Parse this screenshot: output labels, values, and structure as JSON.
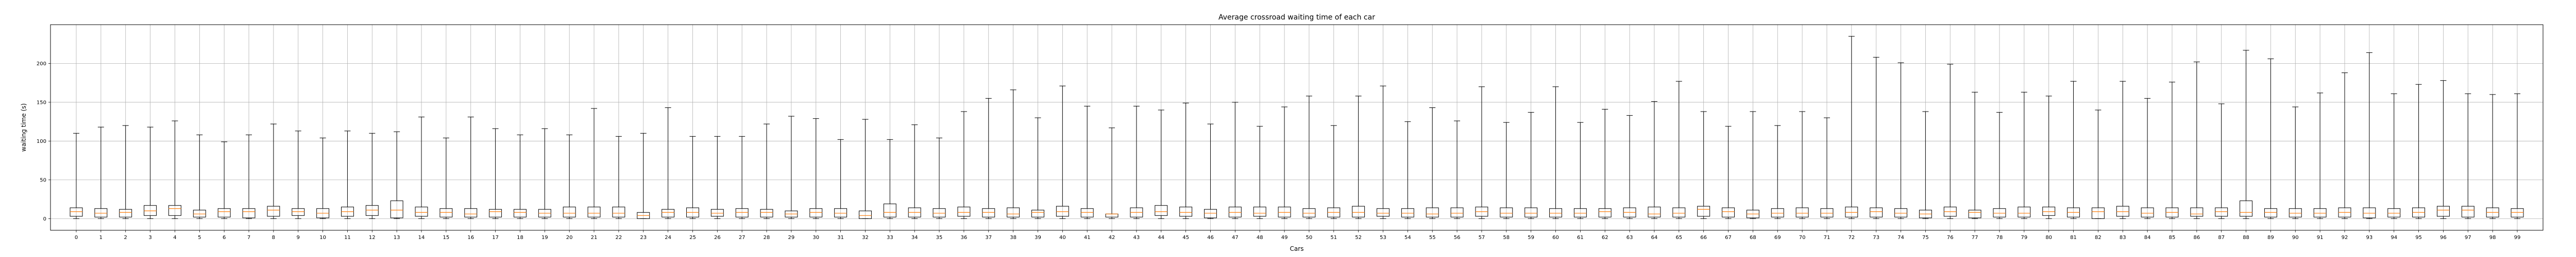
{
  "chart_data": {
    "type": "box",
    "title": "Average crossroad waiting time of each car",
    "xlabel": "Cars",
    "ylabel": "waiting time (s)",
    "ylim": [
      -15,
      250
    ],
    "yticks": [
      0,
      50,
      100,
      150,
      200
    ],
    "grid": true,
    "box_color": "#000000",
    "median_color": "#ff7f0e",
    "categories": [
      "0",
      "1",
      "2",
      "3",
      "4",
      "5",
      "6",
      "7",
      "8",
      "9",
      "10",
      "11",
      "12",
      "13",
      "14",
      "15",
      "16",
      "17",
      "18",
      "19",
      "20",
      "21",
      "22",
      "23",
      "24",
      "25",
      "26",
      "27",
      "28",
      "29",
      "30",
      "31",
      "32",
      "33",
      "34",
      "35",
      "36",
      "37",
      "38",
      "39",
      "40",
      "41",
      "42",
      "43",
      "44",
      "45",
      "46",
      "47",
      "48",
      "49",
      "50",
      "51",
      "52",
      "53",
      "54",
      "55",
      "56",
      "57",
      "58",
      "59",
      "60",
      "61",
      "62",
      "63",
      "64",
      "65",
      "66",
      "67",
      "68",
      "69",
      "70",
      "71",
      "72",
      "73",
      "74",
      "75",
      "76",
      "77",
      "78",
      "79",
      "80",
      "81",
      "82",
      "83",
      "84",
      "85",
      "86",
      "87",
      "88",
      "89",
      "90",
      "91",
      "92",
      "93",
      "94",
      "95",
      "96",
      "97",
      "98",
      "99"
    ],
    "whisker_max": [
      110,
      118,
      120,
      118,
      126,
      108,
      99,
      108,
      122,
      113,
      104,
      113,
      110,
      112,
      131,
      104,
      131,
      116,
      108,
      116,
      108,
      142,
      106,
      110,
      143,
      106,
      106,
      106,
      122,
      132,
      129,
      102,
      128,
      102,
      121,
      104,
      138,
      155,
      166,
      130,
      171,
      145,
      117,
      145,
      140,
      149,
      122,
      150,
      119,
      144,
      158,
      120,
      158,
      171,
      125,
      143,
      126,
      170,
      124,
      137,
      170,
      124,
      141,
      133,
      151,
      177,
      138,
      119,
      138,
      120,
      138,
      130,
      235,
      208,
      201,
      138,
      199,
      163,
      137,
      163,
      158,
      177,
      140,
      177,
      155,
      176,
      202,
      148,
      217,
      206,
      144,
      162,
      188,
      214,
      161,
      173,
      178,
      161,
      160,
      161
    ],
    "q1": [
      3,
      2,
      2,
      4,
      4,
      2,
      2,
      1,
      3,
      4,
      1,
      3,
      4,
      1,
      3,
      2,
      2,
      2,
      2,
      2,
      2,
      2,
      2,
      0,
      2,
      2,
      3,
      2,
      2,
      2,
      2,
      2,
      0,
      2,
      2,
      2,
      3,
      2,
      2,
      2,
      3,
      2,
      2,
      2,
      4,
      3,
      1,
      2,
      3,
      2,
      2,
      2,
      2,
      3,
      2,
      2,
      2,
      3,
      2,
      2,
      2,
      2,
      2,
      2,
      2,
      2,
      3,
      2,
      1,
      2,
      2,
      2,
      2,
      2,
      2,
      1,
      3,
      1,
      2,
      2,
      4,
      2,
      0,
      3,
      2,
      2,
      3,
      3,
      3,
      2,
      2,
      2,
      2,
      1,
      2,
      2,
      3,
      2,
      2,
      2
    ],
    "median": [
      9,
      7,
      8,
      10,
      13,
      6,
      9,
      9,
      11,
      9,
      7,
      9,
      11,
      11,
      8,
      8,
      6,
      9,
      8,
      7,
      7,
      7,
      7,
      4,
      8,
      8,
      7,
      8,
      8,
      6,
      8,
      7,
      4,
      8,
      8,
      7,
      8,
      8,
      6,
      8,
      9,
      8,
      6,
      8,
      9,
      8,
      7,
      8,
      7,
      8,
      7,
      8,
      8,
      7,
      7,
      6,
      7,
      9,
      7,
      7,
      7,
      7,
      9,
      8,
      6,
      7,
      12,
      9,
      6,
      7,
      7,
      7,
      8,
      9,
      7,
      6,
      9,
      8,
      7,
      7,
      9,
      8,
      9,
      9,
      7,
      8,
      6,
      9,
      8,
      8,
      7,
      7,
      8,
      7,
      7,
      8,
      11,
      11,
      8,
      8
    ],
    "q3": [
      14,
      13,
      12,
      17,
      17,
      11,
      13,
      13,
      16,
      13,
      13,
      15,
      17,
      23,
      15,
      13,
      13,
      12,
      12,
      12,
      15,
      15,
      15,
      8,
      12,
      14,
      12,
      13,
      12,
      10,
      13,
      13,
      10,
      19,
      14,
      13,
      15,
      13,
      14,
      11,
      16,
      13,
      6,
      14,
      17,
      15,
      12,
      15,
      15,
      15,
      13,
      14,
      16,
      13,
      13,
      14,
      14,
      15,
      14,
      14,
      13,
      13,
      13,
      14,
      15,
      14,
      16,
      14,
      11,
      13,
      14,
      13,
      15,
      14,
      13,
      11,
      15,
      11,
      13,
      15,
      15,
      14,
      14,
      16,
      14,
      14,
      14,
      14,
      23,
      13,
      13,
      13,
      14,
      14,
      13,
      14,
      16,
      16,
      14,
      13
    ]
  }
}
